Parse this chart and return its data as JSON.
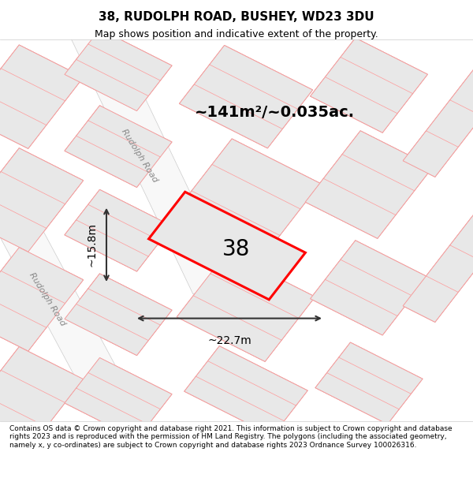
{
  "title": "38, RUDOLPH ROAD, BUSHEY, WD23 3DU",
  "subtitle": "Map shows position and indicative extent of the property.",
  "footer": "Contains OS data © Crown copyright and database right 2021. This information is subject to Crown copyright and database rights 2023 and is reproduced with the permission of HM Land Registry. The polygons (including the associated geometry, namely x, y co-ordinates) are subject to Crown copyright and database rights 2023 Ordnance Survey 100026316.",
  "area_label": "~141m²/~0.035ac.",
  "width_label": "~22.7m",
  "height_label": "~15.8m",
  "plot_number": "38",
  "road_label_1": "Rudolph Road",
  "road_label_2": "Rudolph Road",
  "bg_color": "#f0f0f0",
  "map_bg": "#f5f5f5",
  "plot_fill": "#e8e8e8",
  "plot_outline": "#ff0000",
  "dim_color": "#333333",
  "road_color": "#ffffff",
  "grid_line_color": "#f5c0c0",
  "block_color": "#e0e0e0"
}
